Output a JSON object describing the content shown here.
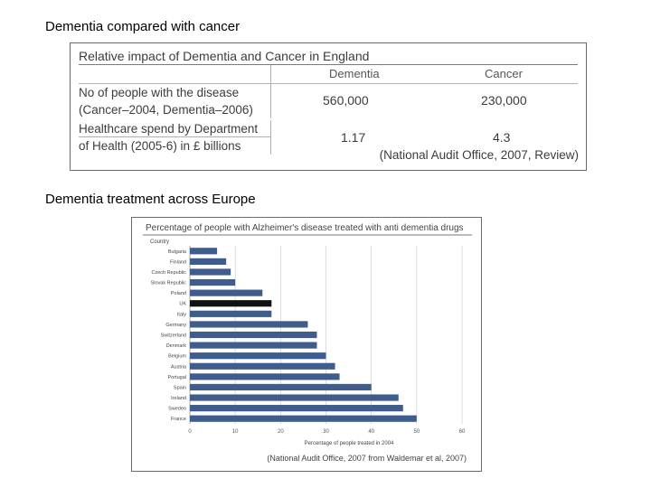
{
  "headings": {
    "top": "Dementia compared with cancer",
    "bottom": "Dementia treatment across Europe"
  },
  "table": {
    "title": "Relative impact of Dementia and Cancer in England",
    "columns": [
      "Dementia",
      "Cancer"
    ],
    "rows": [
      {
        "label_line1": "No of people with the disease",
        "label_line2": "(Cancer–2004, Dementia–2006)",
        "dementia": "560,000",
        "cancer": "230,000"
      },
      {
        "label_line1": "Healthcare spend by Department",
        "label_line2": "of Health (2005-6) in £ billions",
        "dementia": "1.17",
        "cancer": "4.3"
      }
    ],
    "source": "(National Audit Office, 2007, Review)"
  },
  "chart_data": {
    "type": "bar",
    "orientation": "horizontal",
    "title": "Percentage of people with Alzheimer's disease treated with anti dementia drugs",
    "category_axis_title": "Country",
    "categories": [
      "Bulgaria",
      "Finland",
      "Czech Republic",
      "Slovak Republic",
      "Poland",
      "UK",
      "Italy",
      "Germany",
      "Switzerland",
      "Denmark",
      "Belgium",
      "Austria",
      "Portugal",
      "Spain",
      "Ireland",
      "Sweden",
      "France"
    ],
    "values": [
      6,
      8,
      9,
      10,
      16,
      18,
      18,
      26,
      28,
      28,
      30,
      32,
      33,
      40,
      46,
      47,
      50
    ],
    "highlight_category": "UK",
    "xlabel": "Percentage of people treated in 2004",
    "xlim": [
      0,
      60
    ],
    "xticks": [
      0,
      10,
      20,
      30,
      40,
      50,
      60
    ],
    "grid": true,
    "bar_color": "#3f5d8c",
    "highlight_color": "#111111",
    "source": "(National Audit Office, 2007 from Waldemar et al, 2007)"
  }
}
